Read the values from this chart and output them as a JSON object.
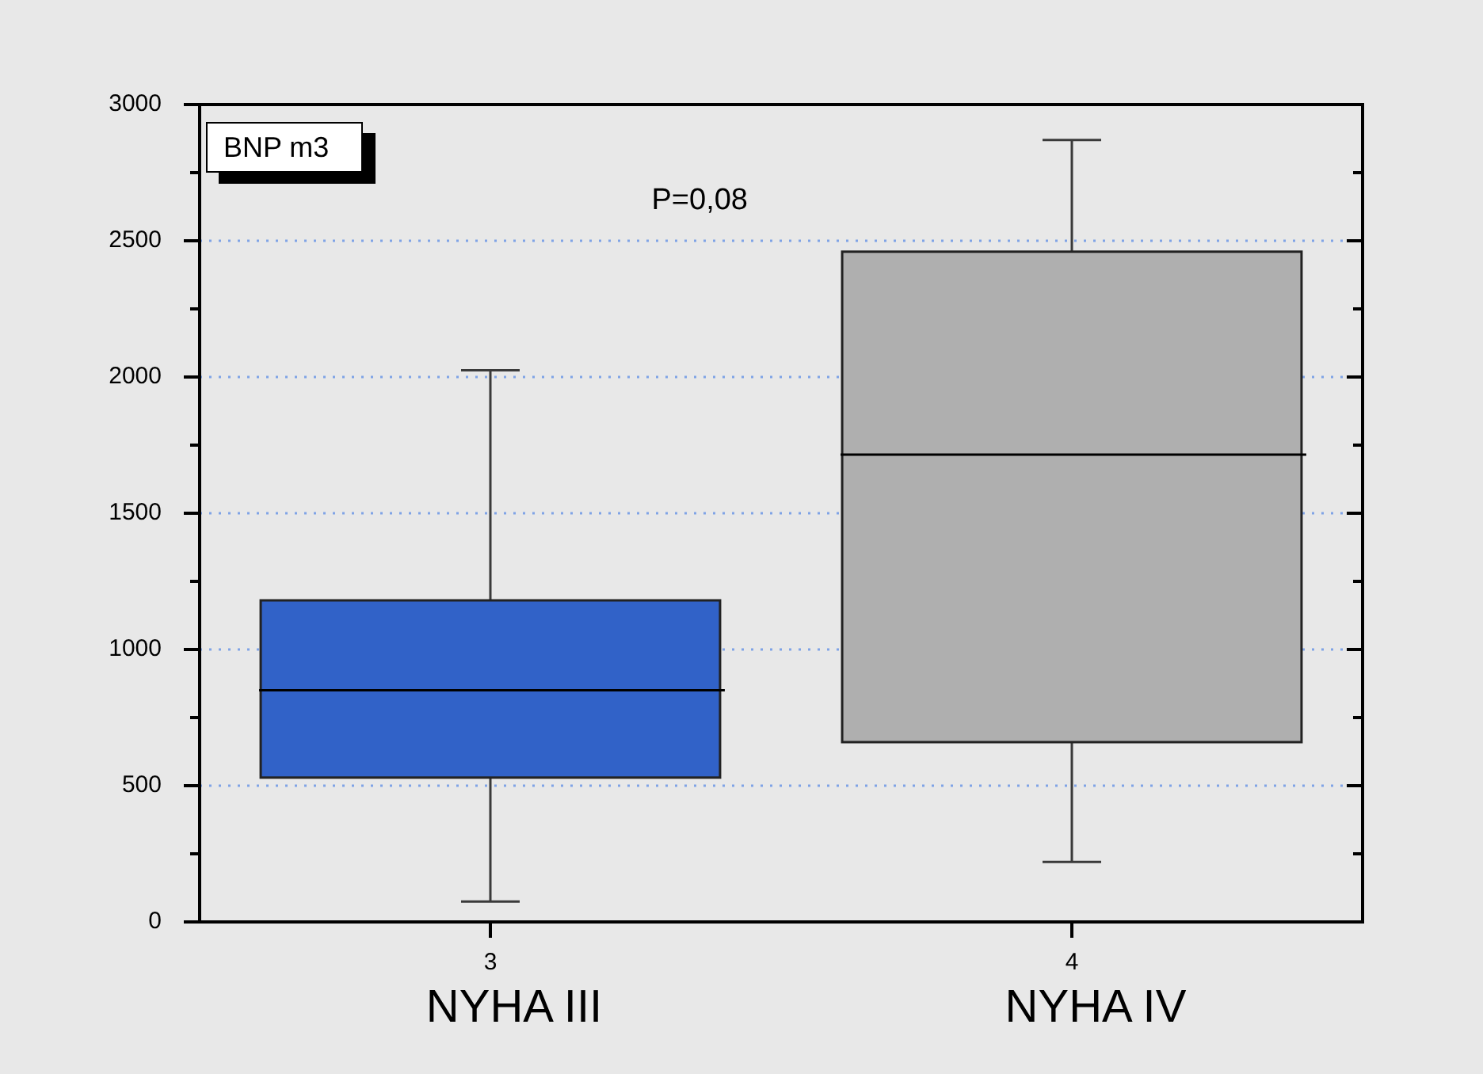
{
  "chart_data": {
    "type": "box",
    "title": "BNP m3",
    "categories": [
      "3",
      "4"
    ],
    "boxes": [
      {
        "low": 75,
        "q1": 530,
        "median": 850,
        "q3": 1180,
        "high": 2025
      },
      {
        "low": 220,
        "q1": 660,
        "median": 1715,
        "q3": 2460,
        "high": 2870
      }
    ],
    "colors": [
      "#3162c8",
      "#afafaf"
    ],
    "ylim": [
      0,
      3000
    ],
    "yticks": [
      0,
      {
        "value": 250,
        "label": null
      },
      500,
      {
        "value": 750,
        "label": null
      },
      1000,
      {
        "value": 1250,
        "label": null
      },
      1500,
      {
        "value": 1750,
        "label": null
      },
      2000,
      {
        "value": 2250,
        "label": null
      },
      2500,
      {
        "value": 2750,
        "label": null
      },
      3000
    ],
    "grid": "y",
    "annotations": [
      "P=0,08",
      "NYHA III",
      "NYHA IV"
    ]
  }
}
